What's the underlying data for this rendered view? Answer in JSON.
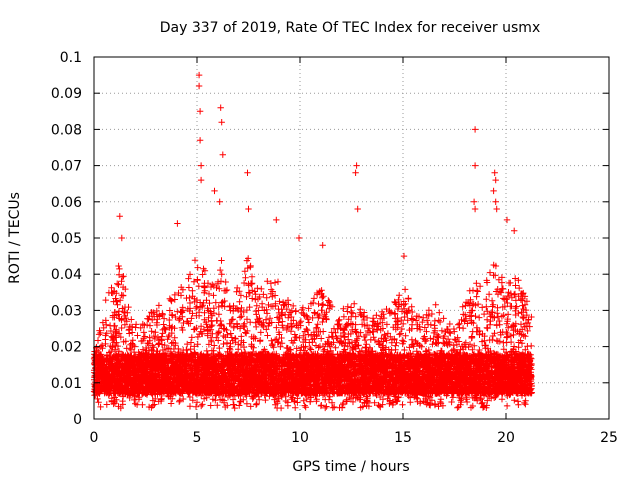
{
  "chart_data": {
    "type": "scatter",
    "title": "Day 337 of 2019, Rate Of TEC Index for receiver usmx",
    "xlabel": "GPS time / hours",
    "ylabel": "ROTI / TECUs",
    "xlim": [
      0,
      25
    ],
    "ylim": [
      0,
      0.1
    ],
    "x_ticks": [
      0,
      5,
      10,
      15,
      20,
      25
    ],
    "x_tick_labels": [
      "0",
      "5",
      "10",
      "15",
      "20",
      "25"
    ],
    "y_ticks": [
      0,
      0.01,
      0.02,
      0.03,
      0.04,
      0.05,
      0.06,
      0.07,
      0.08,
      0.09,
      0.1
    ],
    "y_tick_labels": [
      "0",
      "0.01",
      "0.02",
      "0.03",
      "0.04",
      "0.05",
      "0.06",
      "0.07",
      "0.08",
      "0.09",
      "0.1"
    ],
    "grid": true,
    "marker": "plus",
    "series_color": "#ff0000",
    "x_range_of_data": [
      0,
      21.25
    ],
    "peaks": [
      {
        "x": 1.25,
        "y": 0.056
      },
      {
        "x": 1.35,
        "y": 0.05
      },
      {
        "x": 4.05,
        "y": 0.054
      },
      {
        "x": 5.1,
        "y": 0.095
      },
      {
        "x": 5.1,
        "y": 0.092
      },
      {
        "x": 5.15,
        "y": 0.085
      },
      {
        "x": 5.15,
        "y": 0.077
      },
      {
        "x": 5.2,
        "y": 0.07
      },
      {
        "x": 5.2,
        "y": 0.066
      },
      {
        "x": 6.15,
        "y": 0.086
      },
      {
        "x": 6.2,
        "y": 0.082
      },
      {
        "x": 6.25,
        "y": 0.073
      },
      {
        "x": 5.85,
        "y": 0.063
      },
      {
        "x": 6.1,
        "y": 0.06
      },
      {
        "x": 7.45,
        "y": 0.068
      },
      {
        "x": 7.5,
        "y": 0.058
      },
      {
        "x": 8.85,
        "y": 0.055
      },
      {
        "x": 9.95,
        "y": 0.05
      },
      {
        "x": 11.1,
        "y": 0.048
      },
      {
        "x": 12.75,
        "y": 0.07
      },
      {
        "x": 12.7,
        "y": 0.068
      },
      {
        "x": 12.8,
        "y": 0.058
      },
      {
        "x": 15.05,
        "y": 0.045
      },
      {
        "x": 18.5,
        "y": 0.08
      },
      {
        "x": 18.5,
        "y": 0.07
      },
      {
        "x": 18.45,
        "y": 0.06
      },
      {
        "x": 18.5,
        "y": 0.058
      },
      {
        "x": 19.45,
        "y": 0.068
      },
      {
        "x": 19.5,
        "y": 0.066
      },
      {
        "x": 19.4,
        "y": 0.063
      },
      {
        "x": 19.5,
        "y": 0.06
      },
      {
        "x": 19.55,
        "y": 0.058
      },
      {
        "x": 20.05,
        "y": 0.055
      },
      {
        "x": 20.4,
        "y": 0.052
      }
    ],
    "envelope": [
      [
        0.0,
        0.018
      ],
      [
        0.5,
        0.033
      ],
      [
        1.0,
        0.038
      ],
      [
        1.3,
        0.045
      ],
      [
        1.8,
        0.028
      ],
      [
        2.2,
        0.025
      ],
      [
        2.8,
        0.03
      ],
      [
        3.3,
        0.032
      ],
      [
        4.0,
        0.035
      ],
      [
        4.5,
        0.04
      ],
      [
        5.0,
        0.045
      ],
      [
        5.5,
        0.04
      ],
      [
        5.9,
        0.04
      ],
      [
        6.2,
        0.045
      ],
      [
        6.6,
        0.035
      ],
      [
        7.0,
        0.038
      ],
      [
        7.5,
        0.045
      ],
      [
        8.0,
        0.035
      ],
      [
        8.5,
        0.04
      ],
      [
        9.0,
        0.038
      ],
      [
        9.5,
        0.032
      ],
      [
        10.0,
        0.03
      ],
      [
        10.5,
        0.033
      ],
      [
        11.0,
        0.038
      ],
      [
        11.5,
        0.032
      ],
      [
        12.0,
        0.03
      ],
      [
        12.5,
        0.033
      ],
      [
        13.0,
        0.03
      ],
      [
        13.5,
        0.028
      ],
      [
        14.0,
        0.03
      ],
      [
        14.5,
        0.033
      ],
      [
        15.0,
        0.038
      ],
      [
        15.5,
        0.03
      ],
      [
        16.0,
        0.028
      ],
      [
        16.5,
        0.033
      ],
      [
        17.0,
        0.028
      ],
      [
        17.5,
        0.025
      ],
      [
        18.0,
        0.033
      ],
      [
        18.5,
        0.04
      ],
      [
        19.0,
        0.038
      ],
      [
        19.5,
        0.045
      ],
      [
        20.0,
        0.04
      ],
      [
        20.5,
        0.04
      ],
      [
        21.0,
        0.033
      ],
      [
        21.25,
        0.03
      ]
    ],
    "baseline_band": [
      0.007,
      0.018
    ]
  }
}
